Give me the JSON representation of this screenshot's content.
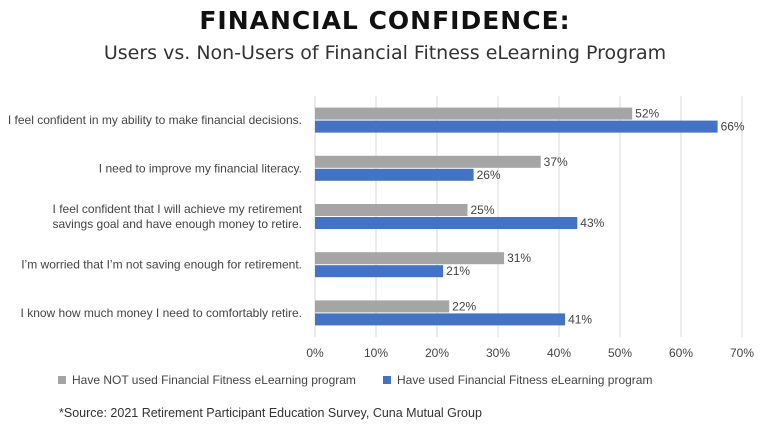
{
  "title": "FINANCIAL CONFIDENCE:",
  "subtitle": "Users vs. Non-Users of Financial Fitness eLearning Program",
  "source": "*Source: 2021 Retirement Participant Education Survey, Cuna Mutual Group",
  "colors": {
    "not_used": "#a5a5a5",
    "used": "#4472c4",
    "grid": "#d9d9d9",
    "text": "#444444"
  },
  "chart_data": {
    "type": "bar",
    "orientation": "horizontal",
    "title": "FINANCIAL CONFIDENCE:",
    "subtitle": "Users vs. Non-Users of Financial Fitness eLearning Program",
    "categories": [
      [
        "I feel confident in my ability to make financial decisions."
      ],
      [
        "I need to improve my financial literacy."
      ],
      [
        "I feel confident that I will achieve my retirement",
        "savings goal and have enough money to retire."
      ],
      [
        "I’m worried that I’m not saving enough for retirement."
      ],
      [
        "I know how much money I need to comfortably retire."
      ]
    ],
    "series": [
      {
        "name": "Have NOT used Financial Fitness eLearning program",
        "values": [
          52,
          37,
          25,
          31,
          22
        ],
        "labels": [
          "52%",
          "37%",
          "25%",
          "31%",
          "22%"
        ],
        "color": "#a5a5a5"
      },
      {
        "name": "Have used Financial Fitness eLearning program",
        "values": [
          66,
          26,
          43,
          21,
          41
        ],
        "labels": [
          "66%",
          "26%",
          "43%",
          "21%",
          "41%"
        ],
        "color": "#4472c4"
      }
    ],
    "xlim": [
      0,
      70
    ],
    "xticks": [
      0,
      10,
      20,
      30,
      40,
      50,
      60,
      70
    ],
    "xtick_labels": [
      "0%",
      "10%",
      "20%",
      "30%",
      "40%",
      "50%",
      "60%",
      "70%"
    ],
    "grid": true,
    "legend_position": "bottom"
  }
}
